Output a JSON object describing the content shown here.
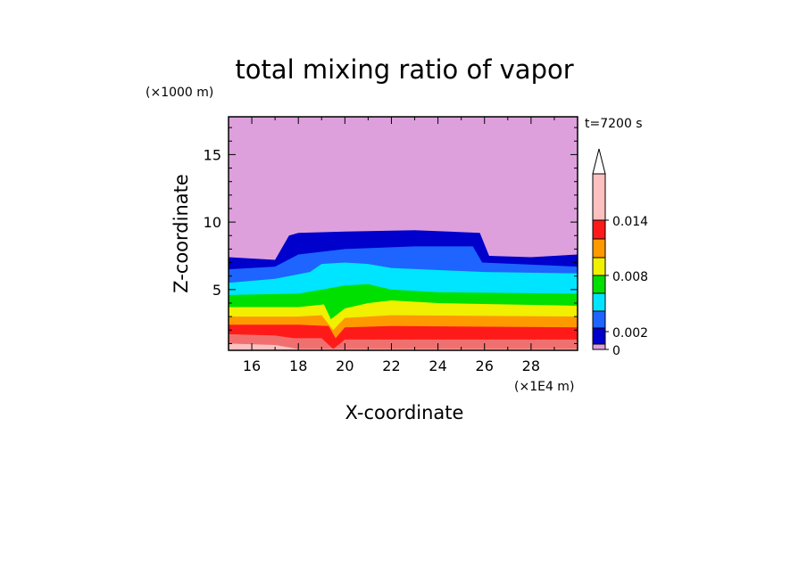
{
  "chart_data": {
    "type": "heatmap",
    "title": "total mixing ratio of vapor",
    "xlabel": "X-coordinate",
    "ylabel": "Z-coordinate",
    "x_units": "(×1E4 m)",
    "y_units": "(×1000 m)",
    "time_label": "t=7200 s",
    "xlim": [
      15,
      30
    ],
    "ylim": [
      0.5,
      17.8
    ],
    "x_ticks": [
      "16",
      "18",
      "20",
      "22",
      "24",
      "26",
      "28"
    ],
    "y_ticks": [
      "5",
      "10",
      "15"
    ],
    "x_tick_values": [
      16,
      18,
      20,
      22,
      24,
      26,
      28
    ],
    "y_tick_values": [
      5,
      10,
      15
    ],
    "colorbar": {
      "levels": [
        0,
        0.001,
        0.002,
        0.004,
        0.006,
        0.008,
        0.01,
        0.012,
        0.014,
        0.016
      ],
      "labels": [
        "0",
        "0.002",
        "0.008",
        "0.014"
      ],
      "label_values": [
        0,
        0.002,
        0.008,
        0.014
      ],
      "colors": [
        "#dda0dd",
        "#0000cd",
        "#1e64ff",
        "#00e5ff",
        "#00e000",
        "#f0f000",
        "#ff9900",
        "#ff1a1a",
        "#f07070",
        "#fcc0c0"
      ],
      "extend": "max"
    },
    "layers": [
      {
        "level_index": 0,
        "top_z": 17.8
      },
      {
        "level_index": 1,
        "top_z": [
          [
            15,
            7.4
          ],
          [
            17,
            7.2
          ],
          [
            17.6,
            9.0
          ],
          [
            18,
            9.2
          ],
          [
            20,
            9.3
          ],
          [
            23,
            9.4
          ],
          [
            25.8,
            9.2
          ],
          [
            26.2,
            7.5
          ],
          [
            28,
            7.4
          ],
          [
            30,
            7.6
          ]
        ]
      },
      {
        "level_index": 2,
        "top_z": [
          [
            15,
            6.5
          ],
          [
            17,
            6.7
          ],
          [
            18,
            7.6
          ],
          [
            20,
            8.0
          ],
          [
            23,
            8.2
          ],
          [
            25.5,
            8.2
          ],
          [
            25.9,
            7.0
          ],
          [
            30,
            6.7
          ]
        ]
      },
      {
        "level_index": 3,
        "top_z": [
          [
            15,
            5.5
          ],
          [
            17,
            5.8
          ],
          [
            18.5,
            6.3
          ],
          [
            19,
            6.9
          ],
          [
            20,
            7.0
          ],
          [
            21,
            6.9
          ],
          [
            22,
            6.6
          ],
          [
            26,
            6.3
          ],
          [
            30,
            6.2
          ]
        ]
      },
      {
        "level_index": 4,
        "top_z": [
          [
            15,
            4.6
          ],
          [
            18,
            4.7
          ],
          [
            19,
            5.0
          ],
          [
            20,
            5.3
          ],
          [
            21,
            5.4
          ],
          [
            22,
            5.0
          ],
          [
            24,
            4.8
          ],
          [
            30,
            4.7
          ]
        ]
      },
      {
        "level_index": 5,
        "top_z": [
          [
            15,
            3.7
          ],
          [
            18,
            3.7
          ],
          [
            19.1,
            3.9
          ],
          [
            19.4,
            2.8
          ],
          [
            20,
            3.6
          ],
          [
            21,
            4.0
          ],
          [
            22,
            4.2
          ],
          [
            24,
            4.0
          ],
          [
            30,
            3.8
          ]
        ]
      },
      {
        "level_index": 6,
        "top_z": [
          [
            15,
            3.0
          ],
          [
            18,
            3.0
          ],
          [
            19,
            3.1
          ],
          [
            19.5,
            2.0
          ],
          [
            20,
            2.9
          ],
          [
            22,
            3.1
          ],
          [
            30,
            3.0
          ]
        ]
      },
      {
        "level_index": 7,
        "top_z": [
          [
            15,
            2.4
          ],
          [
            18,
            2.4
          ],
          [
            19.3,
            2.3
          ],
          [
            19.6,
            1.4
          ],
          [
            20,
            2.2
          ],
          [
            22,
            2.3
          ],
          [
            30,
            2.2
          ]
        ]
      },
      {
        "level_index": 8,
        "top_z": [
          [
            15,
            1.7
          ],
          [
            17,
            1.6
          ],
          [
            17.8,
            1.4
          ],
          [
            19,
            1.4
          ],
          [
            19.5,
            0.6
          ],
          [
            20,
            1.3
          ],
          [
            22,
            1.3
          ],
          [
            30,
            1.3
          ]
        ]
      },
      {
        "level_index": 9,
        "top_z": [
          [
            15,
            1.0
          ],
          [
            17,
            0.9
          ],
          [
            18,
            0.6
          ],
          [
            30,
            0.6
          ]
        ]
      }
    ]
  }
}
